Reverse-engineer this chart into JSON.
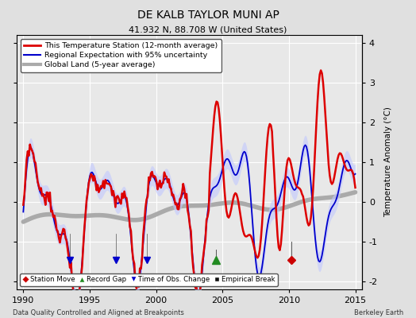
{
  "title": "DE KALB TAYLOR MUNI AP",
  "subtitle": "41.932 N, 88.708 W (United States)",
  "ylabel": "Temperature Anomaly (°C)",
  "xlabel_left": "Data Quality Controlled and Aligned at Breakpoints",
  "xlabel_right": "Berkeley Earth",
  "xlim": [
    1989.5,
    2015.5
  ],
  "ylim": [
    -2.2,
    4.2
  ],
  "yticks": [
    -2,
    -1,
    0,
    1,
    2,
    3,
    4
  ],
  "xticks": [
    1990,
    1995,
    2000,
    2005,
    2010,
    2015
  ],
  "bg_color": "#e0e0e0",
  "plot_bg_color": "#e8e8e8",
  "grid_color": "white",
  "station_line_color": "#dd0000",
  "regional_line_color": "#0000cc",
  "regional_fill_color": "#c0c8ff",
  "global_line_color": "#aaaaaa",
  "legend_items": [
    {
      "label": "This Temperature Station (12-month average)",
      "color": "#dd0000",
      "lw": 2
    },
    {
      "label": "Regional Expectation with 95% uncertainty",
      "color": "#0000cc",
      "lw": 1.5
    },
    {
      "label": "Global Land (5-year average)",
      "color": "#aaaaaa",
      "lw": 3
    }
  ],
  "marker_items": [
    {
      "label": "Station Move",
      "color": "#cc0000",
      "marker": "D"
    },
    {
      "label": "Record Gap",
      "color": "#228B22",
      "marker": "^"
    },
    {
      "label": "Time of Obs. Change",
      "color": "#0000cc",
      "marker": "v"
    },
    {
      "label": "Empirical Break",
      "color": "#111111",
      "marker": "s"
    }
  ],
  "markers": [
    {
      "type": "record_gap",
      "x": 2004.5,
      "color": "#228B22",
      "marker": "^"
    },
    {
      "type": "station_move",
      "x": 2010.2,
      "color": "#cc0000",
      "marker": "D"
    }
  ]
}
